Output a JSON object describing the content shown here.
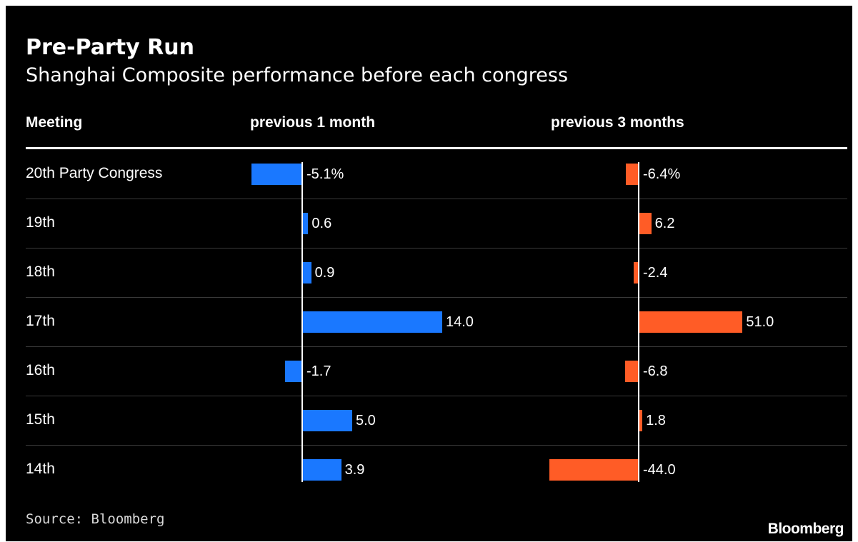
{
  "header": {
    "title": "Pre-Party Run",
    "subtitle": "Shanghai Composite performance before each congress"
  },
  "columns": {
    "meeting": "Meeting",
    "one_month": "previous 1 month",
    "three_months": "previous 3 months"
  },
  "chart_data": {
    "type": "bar",
    "title": "Pre-Party Run",
    "subtitle": "Shanghai Composite performance before each congress",
    "categories": [
      "20th Party Congress",
      "19th",
      "18th",
      "17th",
      "16th",
      "15th",
      "14th"
    ],
    "series": [
      {
        "name": "previous 1 month",
        "color": "#1a78ff",
        "values": [
          -5.1,
          0.6,
          0.9,
          14.0,
          -1.7,
          5.0,
          3.9
        ],
        "labels": [
          "-5.1%",
          "0.6",
          "0.9",
          "14.0",
          "-1.7",
          "5.0",
          "3.9"
        ]
      },
      {
        "name": "previous 3 months",
        "color": "#ff5c26",
        "values": [
          -6.4,
          6.2,
          -2.4,
          51.0,
          -6.8,
          1.8,
          -44.0
        ],
        "labels": [
          "-6.4%",
          "6.2",
          "-2.4",
          "51.0",
          "-6.8",
          "1.8",
          "-44.0"
        ]
      }
    ]
  },
  "footer": {
    "source": "Source: Bloomberg",
    "logo": "Bloomberg"
  }
}
